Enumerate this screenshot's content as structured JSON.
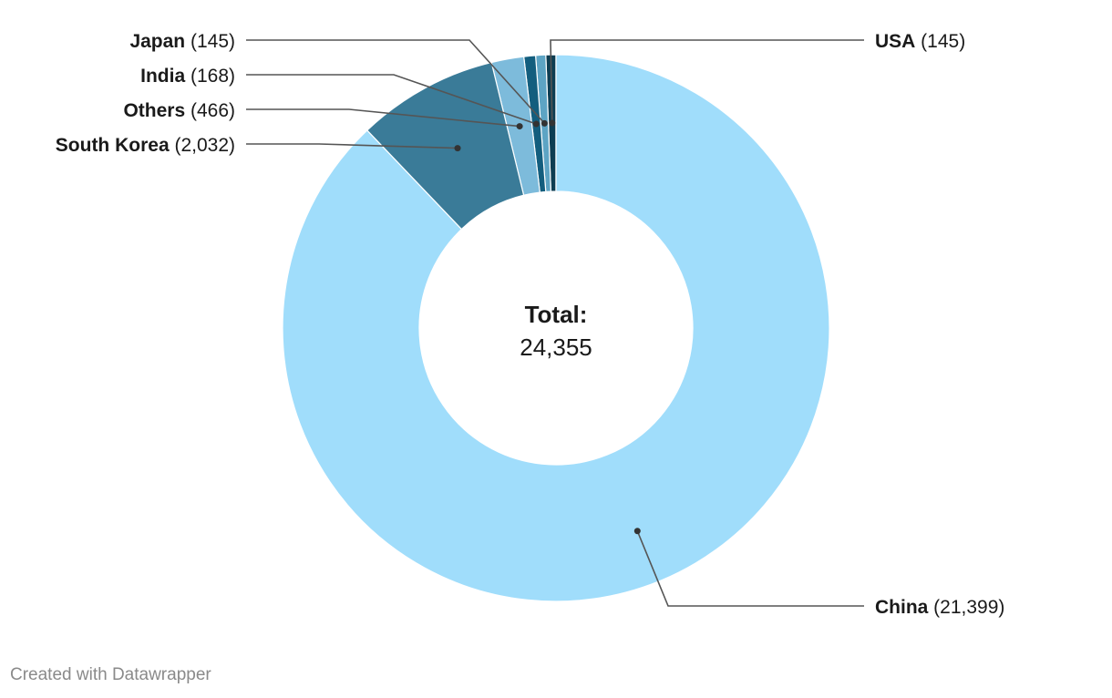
{
  "chart_data": {
    "type": "pie",
    "variant": "donut",
    "slices": [
      {
        "name": "USA",
        "value": 145,
        "value_label": "(145)",
        "color": "#0d3d52"
      },
      {
        "name": "Japan",
        "value": 145,
        "value_label": "(145)",
        "color": "#5da4c4"
      },
      {
        "name": "India",
        "value": 168,
        "value_label": "(168)",
        "color": "#135e7e"
      },
      {
        "name": "Others",
        "value": 466,
        "value_label": "(466)",
        "color": "#7dbbdb"
      },
      {
        "name": "South Korea",
        "value": 2032,
        "value_label": "(2,032)",
        "color": "#3a7b98"
      },
      {
        "name": "China",
        "value": 21399,
        "value_label": "(21,399)",
        "color": "#a0ddfb"
      }
    ],
    "center": {
      "title": "Total:",
      "value": "24,355"
    }
  },
  "footer": {
    "credit": "Created with Datawrapper"
  }
}
